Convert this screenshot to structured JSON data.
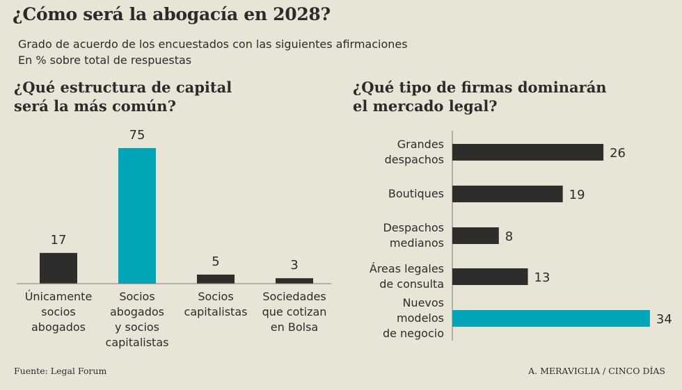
{
  "header": {
    "title": "¿Cómo será la abogacía en 2028?",
    "subtitle_line1": "Grado de acuerdo de los encuestados con las siguientes afirmaciones",
    "subtitle_line2": "En % sobre total de respuestas"
  },
  "colors": {
    "dark": "#2d2d2b",
    "accent": "#00a5b8",
    "background": "#e9e5d6"
  },
  "footer": {
    "source": "Fuente: Legal Forum",
    "credit": "A. MERAVIGLIA / CINCO DÍAS"
  },
  "chart_data": [
    {
      "type": "bar",
      "title_lines": [
        "¿Qué estructura de capital",
        "será la más común?"
      ],
      "categories": [
        [
          "Únicamente",
          "socios",
          "abogados"
        ],
        [
          "Socios",
          "abogados",
          "y socios",
          "capitalistas"
        ],
        [
          "Socios",
          "capitalistas"
        ],
        [
          "Sociedades",
          "que cotizan",
          "en Bolsa"
        ]
      ],
      "values": [
        17,
        75,
        5,
        3
      ],
      "highlight_index": 1
    },
    {
      "type": "bar",
      "orientation": "horizontal",
      "title_lines": [
        "¿Qué tipo de firmas dominarán",
        "el mercado legal?"
      ],
      "categories": [
        [
          "Grandes",
          "despachos"
        ],
        [
          "Boutiques"
        ],
        [
          "Despachos",
          "medianos"
        ],
        [
          "Áreas legales",
          "de consulta"
        ],
        [
          "Nuevos",
          "modelos",
          "de negocio"
        ]
      ],
      "values": [
        26,
        19,
        8,
        13,
        34
      ],
      "highlight_index": 4
    }
  ]
}
